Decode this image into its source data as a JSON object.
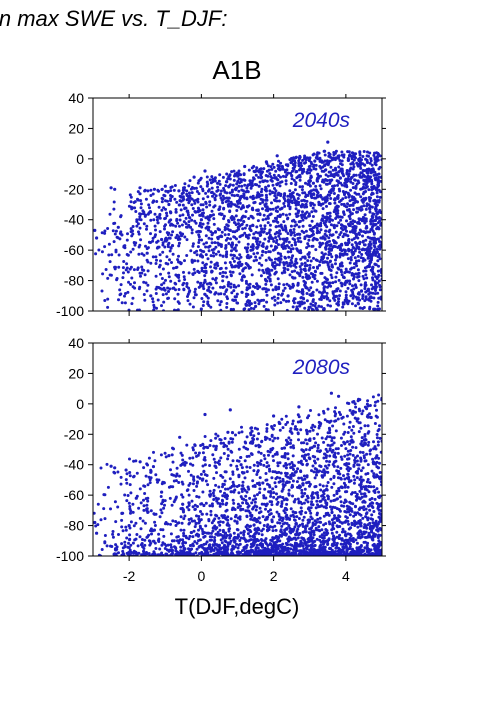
{
  "header": {
    "title": "in max SWE vs. T_DJF:"
  },
  "scenario": {
    "label": "A1B"
  },
  "colors": {
    "points": "#1f1fbf",
    "axis": "#000000"
  },
  "chart_data": [
    {
      "type": "scatter",
      "panel_label": "2040s",
      "xlim": [
        -3,
        5
      ],
      "ylim": [
        -100,
        40
      ],
      "xticks": [
        -2,
        0,
        2,
        4
      ],
      "yticks": [
        -100,
        -80,
        -60,
        -40,
        -20,
        0,
        20,
        40
      ],
      "show_xtick_labels": false,
      "xlabel": "",
      "ylabel": "",
      "grid": false,
      "point_count_estimate": 3000,
      "series": [
        {
          "points": [
            [
              -2.5,
              -19
            ],
            [
              -2.4,
              -20
            ],
            [
              -2.3,
              -45
            ],
            [
              -2.2,
              -50
            ],
            [
              -1.7,
              -19
            ],
            [
              -1.7,
              -23
            ],
            [
              -1.6,
              -36
            ],
            [
              -1.5,
              -62
            ],
            [
              -1.4,
              -90
            ],
            [
              -1.3,
              -20
            ],
            [
              -1.2,
              -42
            ],
            [
              -1.1,
              -53
            ],
            [
              -1.0,
              -18
            ],
            [
              -0.9,
              -30
            ],
            [
              -0.8,
              -57
            ],
            [
              -0.7,
              -35
            ],
            [
              -0.6,
              -68
            ],
            [
              -0.5,
              -25
            ],
            [
              -0.4,
              -82
            ],
            [
              -0.3,
              -45
            ],
            [
              -0.2,
              -12
            ],
            [
              -0.1,
              -74
            ],
            [
              0.0,
              -40
            ],
            [
              0.1,
              -8
            ],
            [
              0.2,
              -58
            ],
            [
              0.3,
              -22
            ],
            [
              0.4,
              -88
            ],
            [
              0.5,
              -33
            ],
            [
              0.6,
              -64
            ],
            [
              0.7,
              -15
            ],
            [
              0.8,
              -47
            ],
            [
              0.9,
              -93
            ],
            [
              1.0,
              -28
            ],
            [
              1.1,
              -70
            ],
            [
              1.2,
              -5
            ],
            [
              1.3,
              -52
            ],
            [
              1.4,
              -38
            ],
            [
              1.5,
              -97
            ],
            [
              1.6,
              -18
            ],
            [
              1.7,
              -61
            ],
            [
              1.8,
              -2
            ],
            [
              1.9,
              -79
            ],
            [
              2.0,
              -41
            ],
            [
              2.1,
              2
            ],
            [
              2.2,
              -66
            ],
            [
              2.3,
              -24
            ],
            [
              2.4,
              -90
            ],
            [
              2.5,
              -11
            ],
            [
              2.6,
              -55
            ],
            [
              2.7,
              -3
            ],
            [
              2.8,
              -86
            ],
            [
              2.9,
              -30
            ],
            [
              3.0,
              -72
            ],
            [
              3.1,
              -16
            ],
            [
              3.2,
              -99
            ],
            [
              3.3,
              -44
            ],
            [
              3.4,
              5
            ],
            [
              3.5,
              11
            ],
            [
              3.6,
              -60
            ],
            [
              3.7,
              -27
            ],
            [
              3.8,
              -92
            ],
            [
              3.9,
              -8
            ],
            [
              4.0,
              -50
            ],
            [
              4.1,
              2
            ],
            [
              4.2,
              -76
            ],
            [
              4.3,
              -35
            ],
            [
              4.4,
              -98
            ],
            [
              4.5,
              -14
            ],
            [
              4.6,
              -63
            ],
            [
              4.7,
              -40
            ],
            [
              4.8,
              -85
            ],
            [
              4.9,
              3
            ],
            [
              5.0,
              -55
            ],
            [
              -2.95,
              -47
            ],
            [
              -2.9,
              -52
            ]
          ]
        }
      ]
    },
    {
      "type": "scatter",
      "panel_label": "2080s",
      "xlim": [
        -3,
        5
      ],
      "ylim": [
        -100,
        40
      ],
      "xticks": [
        -2,
        0,
        2,
        4
      ],
      "yticks": [
        -100,
        -80,
        -60,
        -40,
        -20,
        0,
        20,
        40
      ],
      "xticklabels": [
        "-2",
        "0",
        "2",
        "4"
      ],
      "xlabel": "T(DJF,degC)",
      "ylabel": "",
      "grid": false,
      "point_count_estimate": 3000,
      "series": [
        {
          "points": [
            [
              -2.5,
              -41
            ],
            [
              -2.4,
              -42
            ],
            [
              -2.95,
              -78
            ],
            [
              -2.9,
              -85
            ],
            [
              -2.2,
              -72
            ],
            [
              -2.0,
              -80
            ],
            [
              -1.8,
              -62
            ],
            [
              -1.6,
              -97
            ],
            [
              -1.4,
              -45
            ],
            [
              -1.3,
              -83
            ],
            [
              -1.1,
              -58
            ],
            [
              -0.9,
              -34
            ],
            [
              -0.8,
              -90
            ],
            [
              -0.6,
              -22
            ],
            [
              -0.5,
              -70
            ],
            [
              -0.3,
              -96
            ],
            [
              -0.1,
              -48
            ],
            [
              0.1,
              -7
            ],
            [
              0.2,
              -85
            ],
            [
              0.4,
              -30
            ],
            [
              0.5,
              -93
            ],
            [
              0.7,
              -60
            ],
            [
              0.8,
              -4
            ],
            [
              1.0,
              -88
            ],
            [
              1.1,
              -40
            ],
            [
              1.3,
              -97
            ],
            [
              1.4,
              -18
            ],
            [
              1.6,
              -75
            ],
            [
              1.7,
              -52
            ],
            [
              1.9,
              -99
            ],
            [
              2.0,
              -8
            ],
            [
              2.1,
              -66
            ],
            [
              2.3,
              -29
            ],
            [
              2.4,
              -95
            ],
            [
              2.6,
              -45
            ],
            [
              2.7,
              -2
            ],
            [
              2.9,
              -84
            ],
            [
              3.0,
              -36
            ],
            [
              3.2,
              -98
            ],
            [
              3.3,
              -13
            ],
            [
              3.5,
              -72
            ],
            [
              3.6,
              7
            ],
            [
              3.8,
              5
            ],
            [
              3.9,
              -55
            ],
            [
              4.1,
              -92
            ],
            [
              4.2,
              -25
            ],
            [
              4.4,
              -99
            ],
            [
              4.5,
              -64
            ],
            [
              4.7,
              -9
            ],
            [
              4.8,
              -87
            ],
            [
              4.9,
              -42
            ],
            [
              5.0,
              -96
            ]
          ]
        }
      ]
    }
  ]
}
